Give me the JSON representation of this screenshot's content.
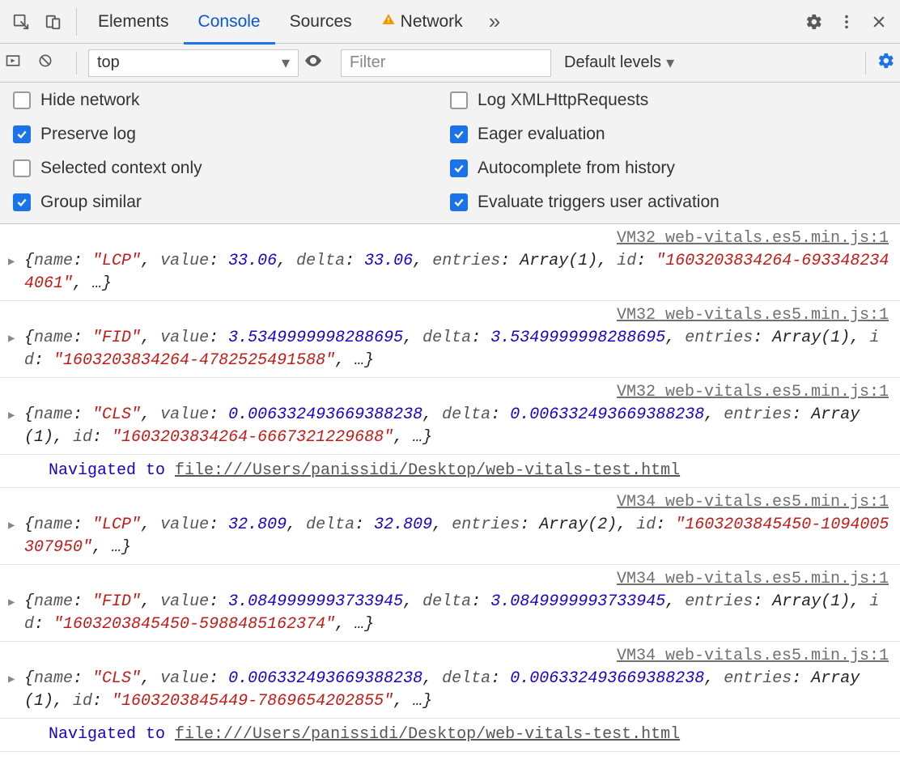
{
  "colors": {
    "panel_bg": "#f3f3f3",
    "border": "#c8c8c8",
    "accent": "#1a73e8",
    "log_string": "#c41a16",
    "log_number": "#1c00cf",
    "log_propname": "#565656",
    "log_nav": "#1a00c7",
    "source_link": "#707070"
  },
  "tabs": {
    "elements": "Elements",
    "console": "Console",
    "sources": "Sources",
    "network": "Network",
    "more": "»"
  },
  "subbar": {
    "context": "top",
    "filter_placeholder": "Filter",
    "levels": "Default levels"
  },
  "settings": {
    "hide_network": {
      "label": "Hide network",
      "checked": false
    },
    "log_xhr": {
      "label": "Log XMLHttpRequests",
      "checked": false
    },
    "preserve_log": {
      "label": "Preserve log",
      "checked": true
    },
    "eager_eval": {
      "label": "Eager evaluation",
      "checked": true
    },
    "selected_context": {
      "label": "Selected context only",
      "checked": false
    },
    "autocomplete_hist": {
      "label": "Autocomplete from history",
      "checked": true
    },
    "group_similar": {
      "label": "Group similar",
      "checked": true
    },
    "eval_user_act": {
      "label": "Evaluate triggers user activation",
      "checked": true
    }
  },
  "nav": {
    "text": "Navigated to ",
    "url": "file:///Users/panissidi/Desktop/web-vitals-test.html"
  },
  "log_keys": {
    "name": "name",
    "value": "value",
    "delta": "delta",
    "entries": "entries",
    "id": "id"
  },
  "entries": [
    {
      "source": "VM32 web-vitals.es5.min.js:1",
      "name": "LCP",
      "value": "33.06",
      "delta": "33.06",
      "array": "Array(1)",
      "id": "1603203834264-6933482344061"
    },
    {
      "source": "VM32 web-vitals.es5.min.js:1",
      "name": "FID",
      "value": "3.5349999998288695",
      "delta": "3.5349999998288695",
      "array": "Array(1)",
      "id": "1603203834264-4782525491588"
    },
    {
      "source": "VM32 web-vitals.es5.min.js:1",
      "name": "CLS",
      "value": "0.006332493669388238",
      "delta": "0.006332493669388238",
      "array": "Array(1)",
      "id": "1603203834264-6667321229688"
    },
    {
      "source": "VM34 web-vitals.es5.min.js:1",
      "name": "LCP",
      "value": "32.809",
      "delta": "32.809",
      "array": "Array(2)",
      "id": "1603203845450-1094005307950"
    },
    {
      "source": "VM34 web-vitals.es5.min.js:1",
      "name": "FID",
      "value": "3.0849999993733945",
      "delta": "3.0849999993733945",
      "array": "Array(1)",
      "id": "1603203845450-5988485162374"
    },
    {
      "source": "VM34 web-vitals.es5.min.js:1",
      "name": "CLS",
      "value": "0.006332493669388238",
      "delta": "0.006332493669388238",
      "array": "Array(1)",
      "id": "1603203845449-7869654202855"
    }
  ]
}
